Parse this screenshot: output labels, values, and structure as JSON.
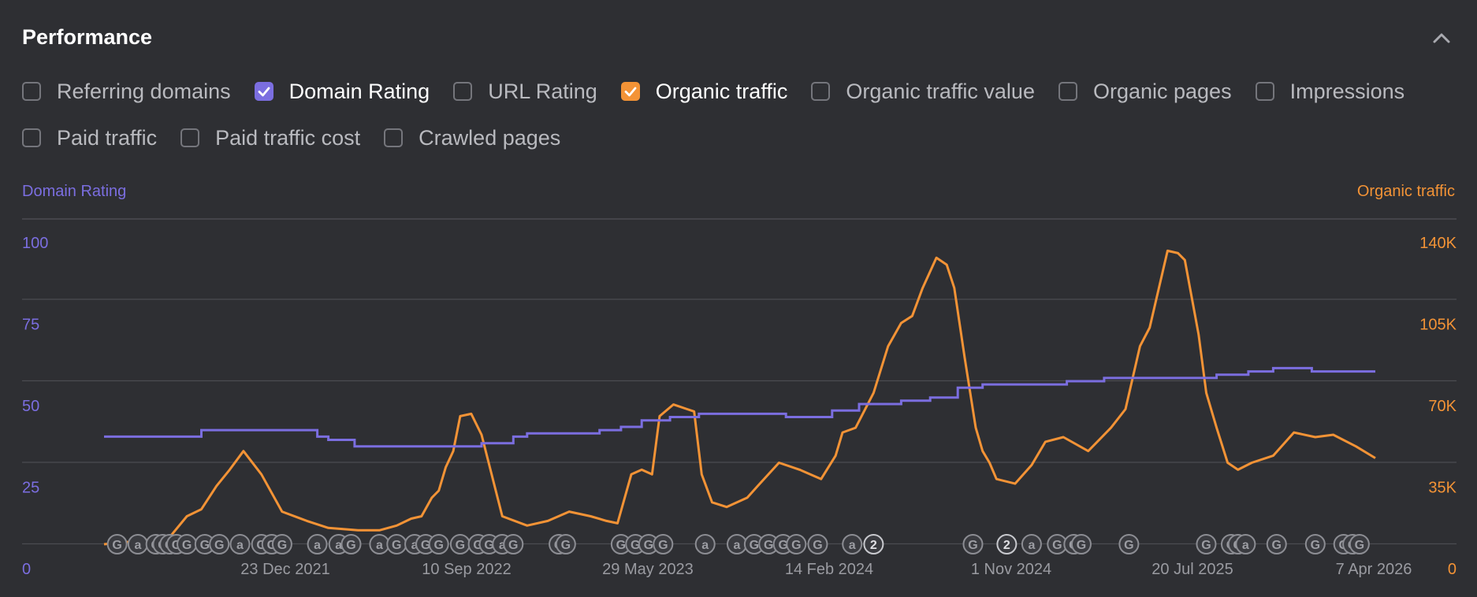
{
  "header": {
    "title": "Performance"
  },
  "colors": {
    "dr": "#7b6ee0",
    "traffic": "#f39336",
    "grid": "#4b4c52",
    "label": "#9a9ba1"
  },
  "options": [
    [
      {
        "label": "Referring domains",
        "checked": false
      },
      {
        "label": "Domain Rating",
        "checked": true,
        "color": "#7b6ee0"
      },
      {
        "label": "URL Rating",
        "checked": false
      },
      {
        "label": "Organic traffic",
        "checked": true,
        "color": "#f39336"
      },
      {
        "label": "Organic traffic value",
        "checked": false
      },
      {
        "label": "Organic pages",
        "checked": false
      },
      {
        "label": "Impressions",
        "checked": false
      }
    ],
    [
      {
        "label": "Paid traffic",
        "checked": false
      },
      {
        "label": "Paid traffic cost",
        "checked": false
      },
      {
        "label": "Crawled pages",
        "checked": false
      }
    ]
  ],
  "chart_data": {
    "type": "line",
    "left_axis_title": "Domain Rating",
    "right_axis_title": "Organic traffic",
    "left_ticks": [
      "0",
      "25",
      "50",
      "75",
      "100"
    ],
    "right_ticks": [
      "0",
      "35K",
      "70K",
      "105K",
      "140K"
    ],
    "left_ylim": [
      0,
      100
    ],
    "right_ylim": [
      0,
      140000
    ],
    "x_tick_labels": [
      "23 Dec 2021",
      "10 Sep 2022",
      "29 May 2023",
      "14 Feb 2024",
      "1 Nov 2024",
      "20 Jul 2025",
      "7 Apr 2026"
    ],
    "x_range": [
      "2021-03-22",
      "2026-04-07"
    ],
    "grid": true,
    "series": [
      {
        "name": "Domain Rating",
        "axis": "left",
        "x": [
          "2021-03-22",
          "2021-08-01",
          "2021-08-10",
          "2022-01-05",
          "2022-01-25",
          "2022-02-10",
          "2022-03-20",
          "2022-07-10",
          "2022-09-20",
          "2022-11-05",
          "2022-11-25",
          "2022-12-20",
          "2023-01-20",
          "2023-03-10",
          "2023-04-10",
          "2023-05-10",
          "2023-06-20",
          "2023-08-01",
          "2023-10-05",
          "2023-12-05",
          "2024-02-10",
          "2024-03-20",
          "2024-04-10",
          "2024-05-20",
          "2024-07-01",
          "2024-08-10",
          "2024-09-15",
          "2024-10-20",
          "2025-01-15",
          "2025-03-10",
          "2025-04-15",
          "2025-06-10",
          "2025-08-20",
          "2025-10-05",
          "2025-11-10",
          "2026-01-05",
          "2026-04-07"
        ],
        "values": [
          33,
          33,
          35,
          35,
          33,
          32,
          30,
          30,
          31,
          33,
          34,
          34,
          34,
          35,
          36,
          38,
          39,
          40,
          40,
          39,
          41,
          43,
          43,
          44,
          45,
          48,
          49,
          49,
          50,
          51,
          51,
          51,
          52,
          53,
          54,
          53,
          53
        ]
      },
      {
        "name": "Organic traffic",
        "axis": "right",
        "x": [
          "2021-03-22",
          "2021-06-01",
          "2021-06-25",
          "2021-07-20",
          "2021-08-10",
          "2021-09-01",
          "2021-09-20",
          "2021-10-10",
          "2021-11-05",
          "2021-12-05",
          "2022-01-10",
          "2022-02-10",
          "2022-03-25",
          "2022-04-25",
          "2022-05-20",
          "2022-06-10",
          "2022-06-25",
          "2022-07-10",
          "2022-07-20",
          "2022-07-30",
          "2022-08-10",
          "2022-08-20",
          "2022-09-05",
          "2022-09-20",
          "2022-10-20",
          "2022-11-25",
          "2022-12-25",
          "2023-01-25",
          "2023-02-25",
          "2023-03-20",
          "2023-04-05",
          "2023-04-25",
          "2023-05-10",
          "2023-05-25",
          "2023-06-05",
          "2023-06-25",
          "2023-07-15",
          "2023-07-25",
          "2023-08-05",
          "2023-08-20",
          "2023-09-10",
          "2023-10-10",
          "2023-10-25",
          "2023-11-25",
          "2023-12-25",
          "2024-01-25",
          "2024-02-15",
          "2024-02-25",
          "2024-03-15",
          "2024-04-10",
          "2024-05-01",
          "2024-05-20",
          "2024-06-05",
          "2024-06-20",
          "2024-07-10",
          "2024-07-25",
          "2024-08-05",
          "2024-08-20",
          "2024-09-05",
          "2024-09-15",
          "2024-09-25",
          "2024-10-05",
          "2024-11-01",
          "2024-11-25",
          "2024-12-15",
          "2025-01-10",
          "2025-02-15",
          "2025-03-20",
          "2025-04-10",
          "2025-05-01",
          "2025-05-15",
          "2025-06-10",
          "2025-06-25",
          "2025-07-05",
          "2025-07-25",
          "2025-08-05",
          "2025-08-20",
          "2025-09-05",
          "2025-09-20",
          "2025-10-10",
          "2025-11-10",
          "2025-12-10",
          "2026-01-10",
          "2026-02-05",
          "2026-03-10",
          "2026-04-07"
        ],
        "values": [
          0,
          2000,
          3000,
          12000,
          15000,
          25000,
          32000,
          40000,
          30000,
          14000,
          10000,
          7000,
          6000,
          6000,
          8000,
          11000,
          12000,
          20000,
          23000,
          33000,
          40000,
          55000,
          56000,
          47000,
          12000,
          8000,
          10000,
          14000,
          12000,
          10000,
          9000,
          30000,
          32000,
          30000,
          55000,
          60000,
          58000,
          57000,
          30000,
          18000,
          16000,
          20000,
          25000,
          35000,
          32000,
          28000,
          38000,
          48000,
          50000,
          65000,
          85000,
          95000,
          98000,
          110000,
          123000,
          120000,
          110000,
          80000,
          50000,
          40000,
          35000,
          28000,
          26000,
          34000,
          44000,
          46000,
          40000,
          50000,
          58000,
          85000,
          93000,
          126000,
          125000,
          122000,
          90000,
          65000,
          50000,
          35000,
          32000,
          35000,
          38000,
          48000,
          46000,
          47000,
          42000,
          37000
        ]
      }
    ],
    "event_markers": [
      {
        "date": "2021-04-10",
        "label": "G"
      },
      {
        "date": "2021-05-10",
        "label": "a"
      },
      {
        "date": "2021-06-05",
        "label": "G"
      },
      {
        "date": "2021-06-15",
        "label": "G"
      },
      {
        "date": "2021-06-25",
        "label": "G"
      },
      {
        "date": "2021-07-05",
        "label": "G"
      },
      {
        "date": "2021-07-20",
        "label": "G"
      },
      {
        "date": "2021-08-15",
        "label": "G"
      },
      {
        "date": "2021-09-05",
        "label": "G"
      },
      {
        "date": "2021-10-05",
        "label": "a"
      },
      {
        "date": "2021-11-05",
        "label": "G"
      },
      {
        "date": "2021-11-20",
        "label": "G"
      },
      {
        "date": "2021-12-05",
        "label": "G"
      },
      {
        "date": "2022-01-25",
        "label": "a"
      },
      {
        "date": "2022-02-25",
        "label": "a"
      },
      {
        "date": "2022-03-15",
        "label": "G"
      },
      {
        "date": "2022-04-25",
        "label": "a"
      },
      {
        "date": "2022-05-20",
        "label": "G"
      },
      {
        "date": "2022-06-15",
        "label": "a"
      },
      {
        "date": "2022-07-01",
        "label": "G"
      },
      {
        "date": "2022-07-20",
        "label": "G"
      },
      {
        "date": "2022-08-20",
        "label": "G"
      },
      {
        "date": "2022-09-15",
        "label": "G"
      },
      {
        "date": "2022-10-01",
        "label": "G"
      },
      {
        "date": "2022-10-20",
        "label": "a"
      },
      {
        "date": "2022-11-05",
        "label": "G"
      },
      {
        "date": "2023-01-10",
        "label": "G"
      },
      {
        "date": "2023-01-20",
        "label": "G"
      },
      {
        "date": "2023-04-10",
        "label": "G"
      },
      {
        "date": "2023-05-01",
        "label": "G"
      },
      {
        "date": "2023-05-20",
        "label": "G"
      },
      {
        "date": "2023-06-10",
        "label": "G"
      },
      {
        "date": "2023-08-10",
        "label": "a"
      },
      {
        "date": "2023-09-25",
        "label": "a"
      },
      {
        "date": "2023-10-20",
        "label": "G"
      },
      {
        "date": "2023-11-10",
        "label": "G"
      },
      {
        "date": "2023-12-01",
        "label": "G"
      },
      {
        "date": "2023-12-20",
        "label": "G"
      },
      {
        "date": "2024-01-20",
        "label": "G"
      },
      {
        "date": "2024-03-10",
        "label": "a"
      },
      {
        "date": "2024-04-10",
        "label": "2"
      },
      {
        "date": "2024-09-01",
        "label": "G"
      },
      {
        "date": "2024-10-20",
        "label": "2"
      },
      {
        "date": "2024-11-25",
        "label": "a"
      },
      {
        "date": "2025-01-01",
        "label": "G"
      },
      {
        "date": "2025-01-25",
        "label": "G"
      },
      {
        "date": "2025-02-05",
        "label": "G"
      },
      {
        "date": "2025-04-15",
        "label": "G"
      },
      {
        "date": "2025-08-05",
        "label": "G"
      },
      {
        "date": "2025-09-10",
        "label": "G"
      },
      {
        "date": "2025-09-20",
        "label": "G"
      },
      {
        "date": "2025-10-01",
        "label": "a"
      },
      {
        "date": "2025-11-15",
        "label": "G"
      },
      {
        "date": "2026-01-10",
        "label": "G"
      },
      {
        "date": "2026-02-20",
        "label": "G"
      },
      {
        "date": "2026-03-05",
        "label": "G"
      },
      {
        "date": "2026-03-15",
        "label": "G"
      }
    ]
  }
}
